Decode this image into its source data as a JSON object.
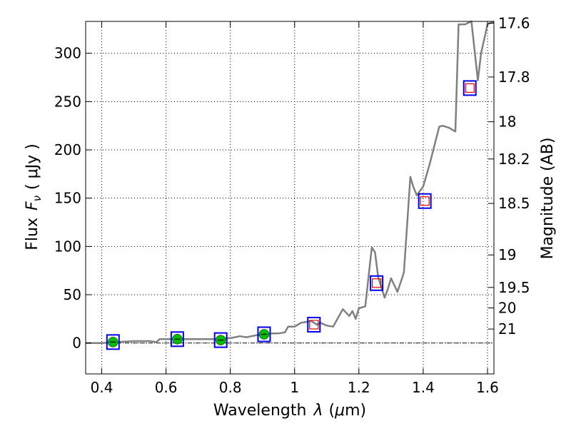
{
  "chart_data": {
    "type": "line",
    "xlabel_text": "Wavelength",
    "xlabel_symbol": "λ",
    "xlabel_unit_open": "(",
    "xlabel_unit_mu": "μ",
    "xlabel_unit_rest": "m)",
    "ylabel_text": "Flux",
    "ylabel_symbol": "F",
    "ylabel_symbol_sub": "ν",
    "ylabel_unit": "( μJy )",
    "y2label": "Magnitude (AB)",
    "xlim": [
      0.35,
      1.62
    ],
    "ylim": [
      -32,
      333
    ],
    "x_ticks": [
      0.4,
      0.6,
      0.8,
      1.0,
      1.2,
      1.4,
      1.6
    ],
    "x_tick_labels": [
      "0.4",
      "0.6",
      "0.8",
      "1",
      "1.2",
      "1.4",
      "1.6"
    ],
    "y_ticks": [
      0,
      50,
      100,
      150,
      200,
      250,
      300
    ],
    "y_tick_labels": [
      "0",
      "50",
      "100",
      "150",
      "200",
      "250",
      "300"
    ],
    "y2_ticks": [
      17.6,
      17.8,
      18,
      18.2,
      18.5,
      19,
      19.5,
      20,
      21
    ],
    "y2_tick_labels": [
      "17.6",
      "17.8",
      "18",
      "18.2",
      "18.5",
      "19",
      "19.5",
      "20",
      "21"
    ],
    "grid": true,
    "model_spectrum": {
      "color": "#808080",
      "x": [
        0.35,
        0.4,
        0.45,
        0.5,
        0.55,
        0.57,
        0.58,
        0.6,
        0.65,
        0.7,
        0.75,
        0.78,
        0.8,
        0.83,
        0.85,
        0.88,
        0.9,
        0.93,
        0.95,
        0.97,
        0.98,
        1.0,
        1.02,
        1.04,
        1.05,
        1.07,
        1.08,
        1.1,
        1.12,
        1.15,
        1.17,
        1.18,
        1.19,
        1.2,
        1.22,
        1.24,
        1.25,
        1.26,
        1.28,
        1.29,
        1.3,
        1.32,
        1.34,
        1.36,
        1.37,
        1.38,
        1.4,
        1.42,
        1.43,
        1.45,
        1.46,
        1.48,
        1.5,
        1.51,
        1.53,
        1.55,
        1.57,
        1.58,
        1.6,
        1.62
      ],
      "y": [
        0,
        0,
        1,
        2,
        2,
        1,
        4,
        4,
        4,
        4,
        4,
        5,
        5,
        7,
        6,
        8,
        8,
        10,
        10,
        11,
        17,
        17,
        21,
        22,
        23,
        19,
        21,
        18,
        17,
        35,
        28,
        33,
        25,
        36,
        38,
        99,
        94,
        68,
        47,
        56,
        67,
        53,
        73,
        172,
        161,
        153,
        162,
        185,
        198,
        224,
        225,
        223,
        219,
        330,
        330,
        335,
        272,
        300,
        330,
        335
      ]
    },
    "observed": {
      "marker_color": "#00bb00",
      "box_color": "#0000ee",
      "x": [
        0.435,
        0.635,
        0.77,
        0.905
      ],
      "y": [
        1,
        4,
        3,
        9
      ]
    },
    "synthetic": {
      "marker_color": "#ee0000",
      "box_color": "#0000ee",
      "x": [
        1.06,
        1.255,
        1.405,
        1.545
      ],
      "y": [
        19,
        62,
        147,
        264
      ]
    }
  }
}
